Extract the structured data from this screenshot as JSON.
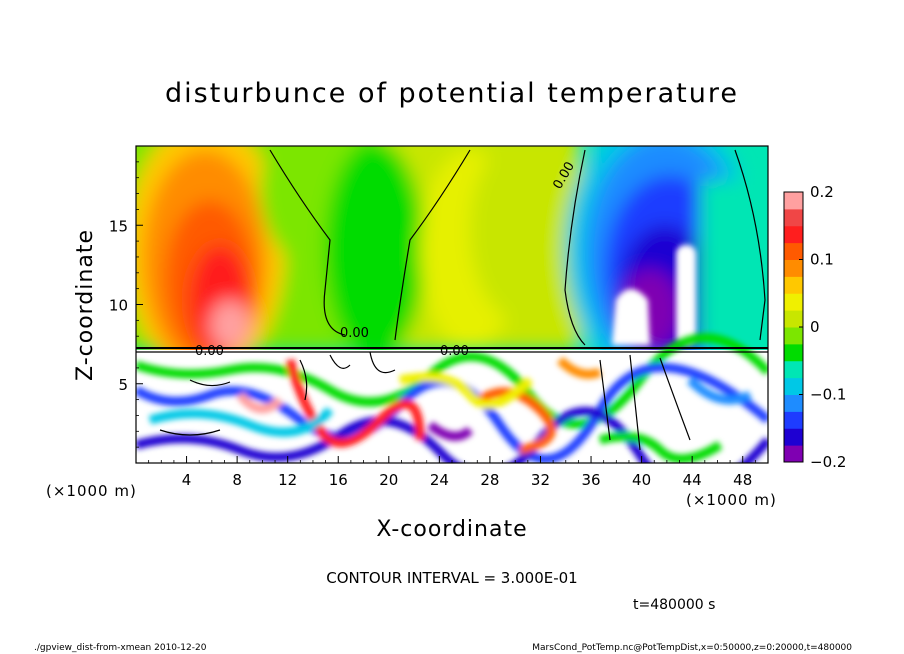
{
  "chart_data": {
    "type": "heatmap",
    "title": "disturbunce of potential temperature",
    "xlabel": "X-coordinate",
    "ylabel": "Z-coordinate",
    "x_unit": "(×1000 m)",
    "z_unit": "(×1000 m)",
    "x_ticks": [
      4,
      8,
      12,
      16,
      20,
      24,
      28,
      32,
      36,
      40,
      44,
      48
    ],
    "y_ticks": [
      5,
      10,
      15
    ],
    "xlim": [
      0,
      50
    ],
    "ylim": [
      0,
      20
    ],
    "colorbar": {
      "ticks": [
        0.2,
        0.1,
        0,
        -0.1,
        -0.2
      ],
      "tick_labels": [
        "0.2",
        "0.1",
        "0",
        "−0.1",
        "−0.2"
      ],
      "range": [
        -0.2,
        0.2
      ],
      "colors": [
        "#7f00b2",
        "#1e00d2",
        "#1e3cff",
        "#1e8cff",
        "#00c8e6",
        "#00e6b4",
        "#00dc00",
        "#7ce600",
        "#c8e600",
        "#f0f000",
        "#ffc800",
        "#ff8c00",
        "#ff5a00",
        "#ff1e1e",
        "#f04646",
        "#ffa0a0"
      ]
    },
    "contour_interval": "CONTOUR INTERVAL = 3.000E-01",
    "contour_labels": [
      "0.00",
      "0.00",
      "0.00",
      "0.00"
    ],
    "time_label": "t=480000 s",
    "description_regions": {
      "warm_anomaly_max": 0.2,
      "cold_anomaly_min": -0.2
    }
  },
  "footer": {
    "left": "./gpview_dist-from-xmean  2010-12-20",
    "right": "MarsCond_PotTemp.nc@PotTempDist,x=0:50000,z=0:20000,t=480000"
  }
}
